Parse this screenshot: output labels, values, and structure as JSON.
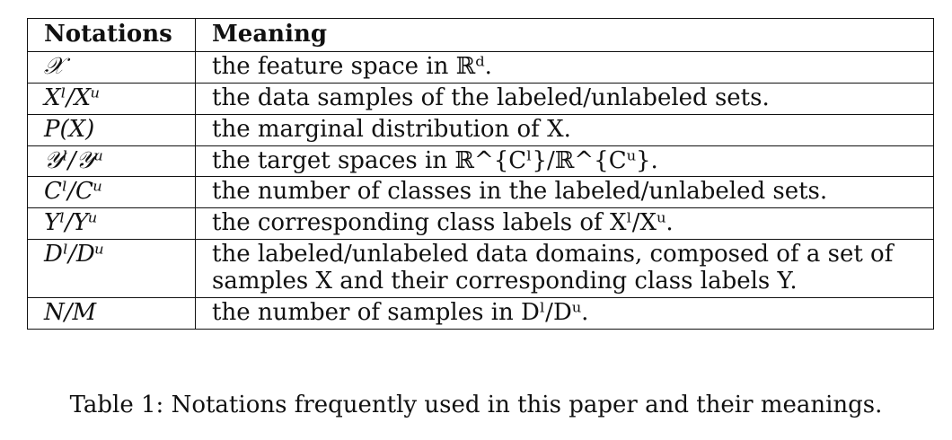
{
  "table": {
    "headers": {
      "notation": "Notations",
      "meaning": "Meaning"
    },
    "rows": [
      {
        "notation": "𝒳",
        "meaning": "the feature space in ℝᵈ."
      },
      {
        "notation": "Xˡ/Xᵘ",
        "meaning": "the data samples of the labeled/unlabeled sets."
      },
      {
        "notation": "P(X)",
        "meaning": "the marginal distribution of X."
      },
      {
        "notation": "𝒴ˡ/𝒴ᵘ",
        "meaning": "the target spaces in ℝ^{Cˡ}/ℝ^{Cᵘ}."
      },
      {
        "notation": "Cˡ/Cᵘ",
        "meaning": "the number of classes in the labeled/unlabeled sets."
      },
      {
        "notation": "Yˡ/Yᵘ",
        "meaning": "the corresponding class labels of Xˡ/Xᵘ."
      },
      {
        "notation": "Dˡ/Dᵘ",
        "meaning": "the labeled/unlabeled data domains, composed of a set of samples X and their corresponding class labels Y."
      },
      {
        "notation": "N/M",
        "meaning": "the number of samples in Dˡ/Dᵘ."
      }
    ]
  },
  "caption": "Table 1: Notations frequently used in this paper and their meanings."
}
